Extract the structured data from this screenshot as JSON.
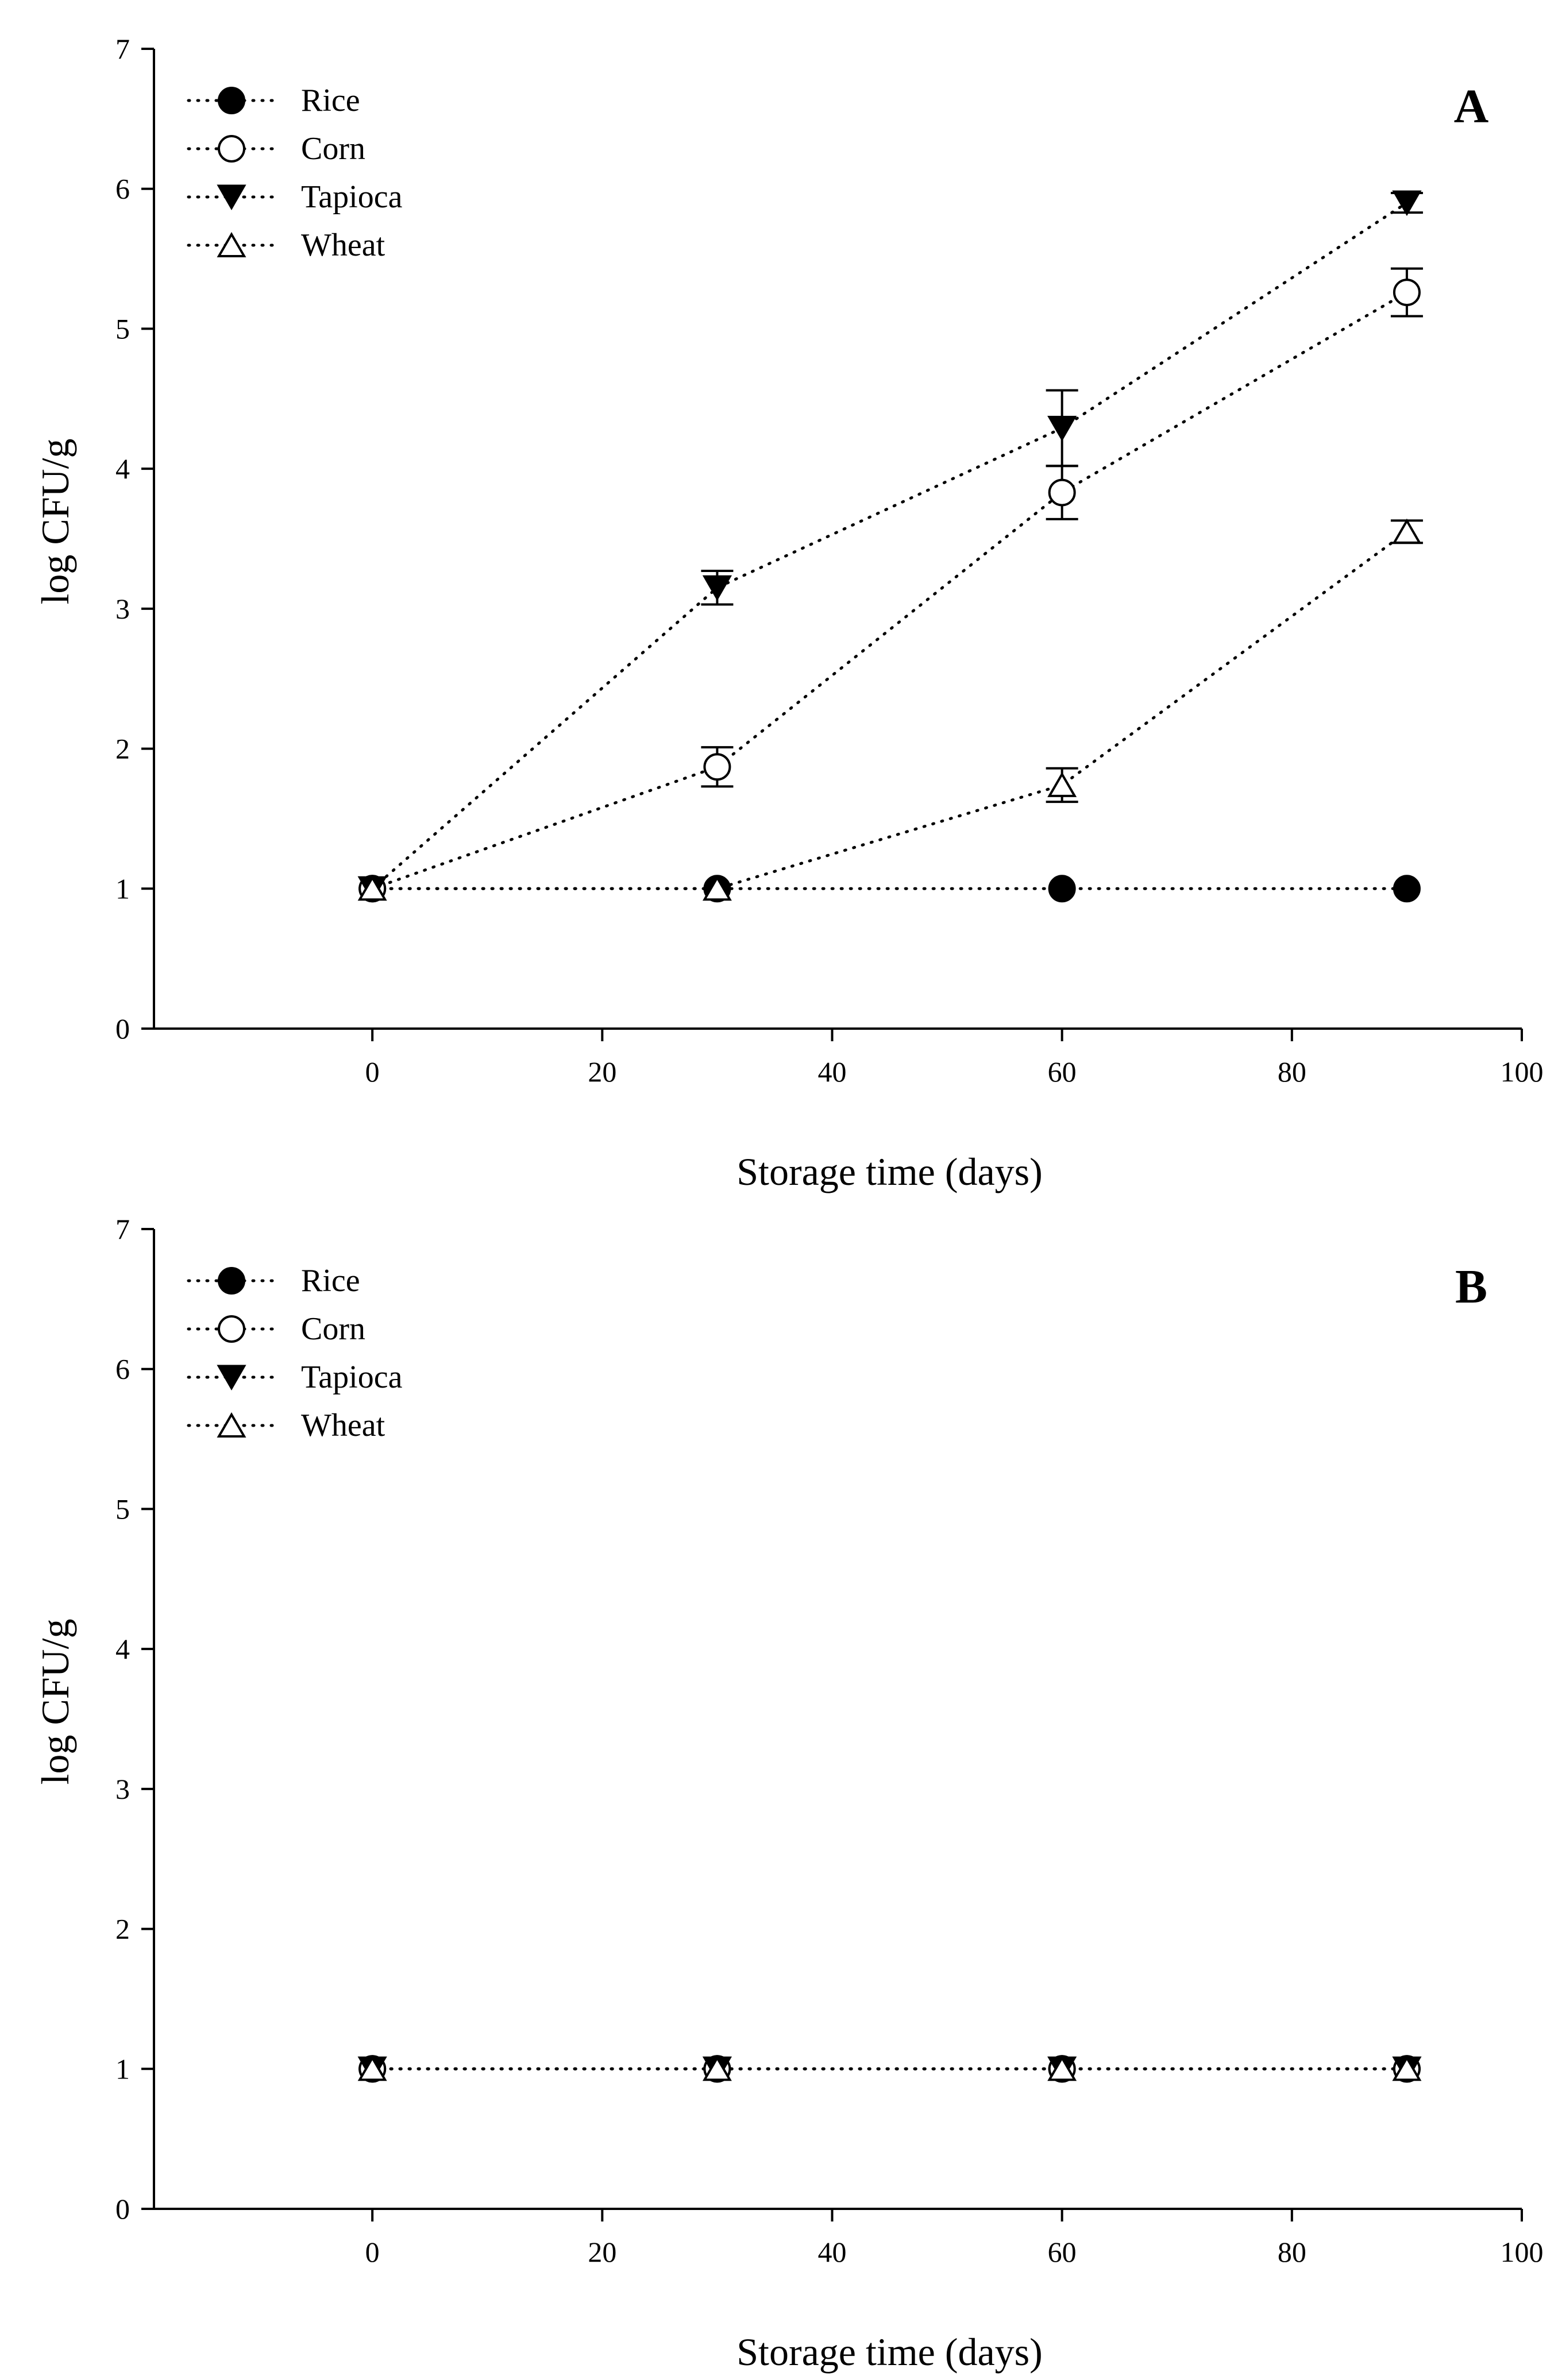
{
  "figure": {
    "colors": {
      "ink": "#000000",
      "background": "#ffffff"
    }
  },
  "chart_data": [
    {
      "type": "line",
      "panel": "A",
      "title": "",
      "xlabel": "Storage time (days)",
      "ylabel": "log CFU/g",
      "xlim": [
        -19,
        100
      ],
      "ylim": [
        0,
        7
      ],
      "xticks": [
        0,
        20,
        40,
        60,
        80,
        100
      ],
      "yticks": [
        0,
        1,
        2,
        3,
        4,
        5,
        6,
        7
      ],
      "grid": false,
      "legend_position": "top-left",
      "x": [
        0,
        30,
        60,
        90
      ],
      "series": [
        {
          "name": "Rice",
          "marker": "filled-circle",
          "values": [
            1.0,
            1.0,
            1.0,
            1.0
          ],
          "errors": [
            0,
            0,
            0,
            0
          ]
        },
        {
          "name": "Corn",
          "marker": "open-circle",
          "values": [
            1.0,
            1.87,
            3.83,
            5.26
          ],
          "errors": [
            0,
            0.14,
            0.19,
            0.17
          ]
        },
        {
          "name": "Tapioca",
          "marker": "filled-triangle-down",
          "values": [
            1.0,
            3.15,
            4.29,
            5.9
          ],
          "errors": [
            0,
            0.12,
            0.27,
            0.07
          ]
        },
        {
          "name": "Wheat",
          "marker": "open-triangle-up",
          "values": [
            1.0,
            1.0,
            1.74,
            3.55
          ],
          "errors": [
            0,
            0,
            0.12,
            0.08
          ]
        }
      ]
    },
    {
      "type": "line",
      "panel": "B",
      "title": "",
      "xlabel": "Storage time (days)",
      "ylabel": "log CFU/g",
      "xlim": [
        -19,
        100
      ],
      "ylim": [
        0,
        7
      ],
      "xticks": [
        0,
        20,
        40,
        60,
        80,
        100
      ],
      "yticks": [
        0,
        1,
        2,
        3,
        4,
        5,
        6,
        7
      ],
      "grid": false,
      "legend_position": "top-left",
      "x": [
        0,
        30,
        60,
        90
      ],
      "series": [
        {
          "name": "Rice",
          "marker": "filled-circle",
          "values": [
            1.0,
            1.0,
            1.0,
            1.0
          ],
          "errors": [
            0,
            0,
            0,
            0
          ]
        },
        {
          "name": "Corn",
          "marker": "open-circle",
          "values": [
            1.0,
            1.0,
            1.0,
            1.0
          ],
          "errors": [
            0,
            0,
            0,
            0
          ]
        },
        {
          "name": "Tapioca",
          "marker": "filled-triangle-down",
          "values": [
            1.0,
            1.0,
            1.0,
            1.0
          ],
          "errors": [
            0,
            0,
            0,
            0
          ]
        },
        {
          "name": "Wheat",
          "marker": "open-triangle-up",
          "values": [
            1.0,
            1.0,
            1.0,
            1.0
          ],
          "errors": [
            0,
            0,
            0,
            0
          ]
        }
      ]
    }
  ]
}
